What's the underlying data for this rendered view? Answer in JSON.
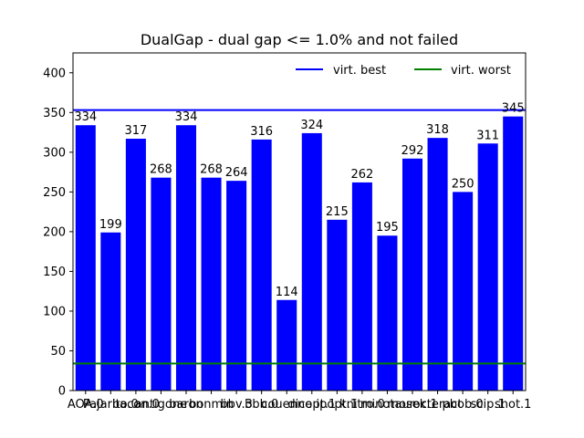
{
  "chart_data": {
    "type": "bar",
    "title": "DualGap - dual gap <= 1.0% and not failed",
    "xlabel": "",
    "ylabel": "",
    "ylim": [
      0,
      425
    ],
    "yticks": [
      0,
      50,
      100,
      150,
      200,
      250,
      300,
      350,
      400
    ],
    "grid": false,
    "legend_position": "top-right",
    "bar_color": "#0000ff",
    "categories": [
      "AOA.0",
      "Pajarito.0",
      "bacon.0",
      "antigone",
      "baron",
      "bonmin",
      "bbv.3",
      "bbb.0",
      "couenne",
      "dicopt.1",
      "ipopt.1",
      "knitro.0",
      "minotaur",
      "mosek.1",
      "octeract",
      "pbob.0",
      "scip.1",
      "shot.1"
    ],
    "values": [
      334,
      199,
      317,
      268,
      334,
      268,
      264,
      316,
      114,
      324,
      215,
      262,
      195,
      292,
      318,
      250,
      311,
      345
    ],
    "data_labels": [
      "334",
      "199",
      "317",
      "268",
      "334",
      "268",
      "264",
      "316",
      "114",
      "324",
      "215",
      "262",
      "195",
      "292",
      "318",
      "250",
      "311",
      "345"
    ],
    "reference_lines": [
      {
        "name": "virt. best",
        "value": 353,
        "color": "#0000ff"
      },
      {
        "name": "virt. worst",
        "value": 34,
        "color": "#008000"
      }
    ]
  }
}
